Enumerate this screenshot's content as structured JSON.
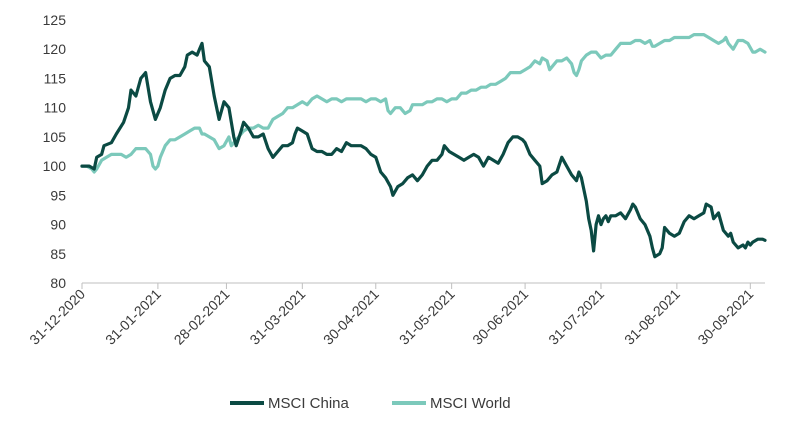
{
  "chart_data": {
    "type": "line",
    "title": "",
    "xlabel": "",
    "ylabel": "",
    "ylim": [
      80,
      125
    ],
    "yticks": [
      80,
      85,
      90,
      95,
      100,
      105,
      110,
      115,
      120,
      125
    ],
    "grid": false,
    "legend_position": "bottom-center",
    "x_tick_labels": [
      "31-12-2020",
      "31-01-2021",
      "28-02-2021",
      "31-03-2021",
      "30-04-2021",
      "31-05-2021",
      "30-06-2021",
      "31-07-2021",
      "31-08-2021",
      "30-09-2021"
    ],
    "x_tick_days": [
      0,
      31,
      59,
      90,
      120,
      151,
      181,
      212,
      243,
      273
    ],
    "series": [
      {
        "name": "MSCI China",
        "color": "#0b4a43",
        "points": [
          [
            0,
            100
          ],
          [
            3,
            100
          ],
          [
            5,
            99.5
          ],
          [
            6,
            101.5
          ],
          [
            8,
            102
          ],
          [
            9,
            103.5
          ],
          [
            12,
            104
          ],
          [
            14,
            105.5
          ],
          [
            17,
            107.5
          ],
          [
            19,
            110
          ],
          [
            20,
            113
          ],
          [
            22,
            112
          ],
          [
            24,
            115
          ],
          [
            26,
            116
          ],
          [
            28,
            111
          ],
          [
            30,
            108
          ],
          [
            32,
            110
          ],
          [
            34,
            113
          ],
          [
            36,
            115
          ],
          [
            38,
            115.5
          ],
          [
            40,
            115.5
          ],
          [
            42,
            117
          ],
          [
            43,
            119
          ],
          [
            45,
            119.5
          ],
          [
            47,
            119
          ],
          [
            48,
            120
          ],
          [
            49,
            121
          ],
          [
            50,
            118
          ],
          [
            52,
            117
          ],
          [
            54,
            112
          ],
          [
            56,
            108
          ],
          [
            58,
            111
          ],
          [
            60,
            110
          ],
          [
            62,
            105
          ],
          [
            63,
            103.5
          ],
          [
            65,
            106
          ],
          [
            66,
            107.5
          ],
          [
            68,
            106.5
          ],
          [
            70,
            105
          ],
          [
            72,
            105
          ],
          [
            74,
            105.5
          ],
          [
            76,
            103
          ],
          [
            78,
            101.5
          ],
          [
            80,
            102.5
          ],
          [
            82,
            103.5
          ],
          [
            84,
            103.5
          ],
          [
            86,
            104
          ],
          [
            87,
            105.5
          ],
          [
            88,
            106.5
          ],
          [
            90,
            106
          ],
          [
            92,
            105.5
          ],
          [
            94,
            103
          ],
          [
            96,
            102.5
          ],
          [
            98,
            102.5
          ],
          [
            100,
            102
          ],
          [
            102,
            102
          ],
          [
            104,
            103
          ],
          [
            106,
            102.5
          ],
          [
            108,
            104
          ],
          [
            110,
            103.5
          ],
          [
            112,
            103.5
          ],
          [
            114,
            103.5
          ],
          [
            116,
            103
          ],
          [
            118,
            102
          ],
          [
            120,
            101.5
          ],
          [
            122,
            99
          ],
          [
            124,
            98
          ],
          [
            126,
            96.5
          ],
          [
            127,
            95
          ],
          [
            129,
            96.5
          ],
          [
            131,
            97
          ],
          [
            133,
            98
          ],
          [
            135,
            98.5
          ],
          [
            137,
            97.5
          ],
          [
            139,
            98.5
          ],
          [
            141,
            100
          ],
          [
            143,
            101
          ],
          [
            145,
            101
          ],
          [
            147,
            102
          ],
          [
            148,
            103.5
          ],
          [
            150,
            102.5
          ],
          [
            152,
            102
          ],
          [
            154,
            101.5
          ],
          [
            156,
            101
          ],
          [
            158,
            101.5
          ],
          [
            160,
            102
          ],
          [
            162,
            101.5
          ],
          [
            164,
            100
          ],
          [
            166,
            101.5
          ],
          [
            168,
            101
          ],
          [
            170,
            100.5
          ],
          [
            172,
            102
          ],
          [
            174,
            104
          ],
          [
            176,
            105
          ],
          [
            178,
            105
          ],
          [
            180,
            104.5
          ],
          [
            181,
            104
          ],
          [
            183,
            102
          ],
          [
            185,
            101
          ],
          [
            187,
            100
          ],
          [
            188,
            97
          ],
          [
            190,
            97.5
          ],
          [
            192,
            98.5
          ],
          [
            194,
            99
          ],
          [
            196,
            101.5
          ],
          [
            198,
            100
          ],
          [
            200,
            98.5
          ],
          [
            202,
            97.5
          ],
          [
            203,
            99
          ],
          [
            204,
            98
          ],
          [
            206,
            94
          ],
          [
            207,
            91
          ],
          [
            208,
            89
          ],
          [
            209,
            85.5
          ],
          [
            210,
            90
          ],
          [
            211,
            91.5
          ],
          [
            212,
            90
          ],
          [
            213,
            91
          ],
          [
            214,
            91.5
          ],
          [
            215,
            90.5
          ],
          [
            216,
            91.5
          ],
          [
            218,
            91.5
          ],
          [
            220,
            92
          ],
          [
            222,
            91
          ],
          [
            224,
            92.5
          ],
          [
            225,
            93.5
          ],
          [
            226,
            93
          ],
          [
            228,
            91
          ],
          [
            230,
            90
          ],
          [
            232,
            88
          ],
          [
            233,
            86
          ],
          [
            234,
            84.5
          ],
          [
            236,
            85
          ],
          [
            237,
            86
          ],
          [
            238,
            89.5
          ],
          [
            239,
            89
          ],
          [
            240,
            88.5
          ],
          [
            242,
            88
          ],
          [
            244,
            88.5
          ],
          [
            246,
            90.5
          ],
          [
            248,
            91.5
          ],
          [
            250,
            91
          ],
          [
            252,
            91.5
          ],
          [
            254,
            92
          ],
          [
            255,
            93.5
          ],
          [
            257,
            93
          ],
          [
            258,
            91
          ],
          [
            260,
            92
          ],
          [
            261,
            90.5
          ],
          [
            262,
            89
          ],
          [
            264,
            88
          ],
          [
            265,
            88.5
          ],
          [
            266,
            87
          ],
          [
            268,
            86
          ],
          [
            270,
            86.5
          ],
          [
            271,
            86
          ],
          [
            272,
            87
          ],
          [
            273,
            86.5
          ],
          [
            274,
            87
          ],
          [
            276,
            87.5
          ],
          [
            278,
            87.5
          ],
          [
            279,
            87.3
          ]
        ]
      },
      {
        "name": "MSCI World",
        "color": "#7cc9bb",
        "points": [
          [
            0,
            100
          ],
          [
            2,
            100
          ],
          [
            4,
            99.5
          ],
          [
            5,
            99
          ],
          [
            6,
            99.5
          ],
          [
            8,
            101
          ],
          [
            10,
            101.5
          ],
          [
            12,
            102
          ],
          [
            14,
            102
          ],
          [
            16,
            102
          ],
          [
            18,
            101.5
          ],
          [
            20,
            102
          ],
          [
            22,
            103
          ],
          [
            24,
            103
          ],
          [
            26,
            103
          ],
          [
            28,
            102
          ],
          [
            29,
            100
          ],
          [
            30,
            99.5
          ],
          [
            31,
            100
          ],
          [
            32,
            101.5
          ],
          [
            34,
            103.5
          ],
          [
            36,
            104.5
          ],
          [
            38,
            104.5
          ],
          [
            40,
            105
          ],
          [
            42,
            105.5
          ],
          [
            44,
            106
          ],
          [
            46,
            106.5
          ],
          [
            48,
            106.5
          ],
          [
            49,
            105.5
          ],
          [
            50,
            105.5
          ],
          [
            52,
            105
          ],
          [
            54,
            104.5
          ],
          [
            56,
            103
          ],
          [
            58,
            103.5
          ],
          [
            60,
            105
          ],
          [
            61,
            103.5
          ],
          [
            62,
            104
          ],
          [
            64,
            105
          ],
          [
            66,
            106
          ],
          [
            68,
            106.5
          ],
          [
            70,
            106.5
          ],
          [
            72,
            107
          ],
          [
            74,
            106.5
          ],
          [
            76,
            106.5
          ],
          [
            78,
            108
          ],
          [
            80,
            108.5
          ],
          [
            82,
            109
          ],
          [
            84,
            110
          ],
          [
            86,
            110
          ],
          [
            88,
            110.5
          ],
          [
            90,
            111
          ],
          [
            92,
            110.5
          ],
          [
            94,
            111.5
          ],
          [
            96,
            112
          ],
          [
            98,
            111.5
          ],
          [
            100,
            111
          ],
          [
            102,
            111.5
          ],
          [
            104,
            111.5
          ],
          [
            106,
            111
          ],
          [
            108,
            111.5
          ],
          [
            110,
            111.5
          ],
          [
            112,
            111.5
          ],
          [
            114,
            111.5
          ],
          [
            116,
            111
          ],
          [
            118,
            111.5
          ],
          [
            120,
            111.5
          ],
          [
            122,
            111
          ],
          [
            124,
            111.5
          ],
          [
            125,
            109.5
          ],
          [
            126,
            109
          ],
          [
            128,
            110
          ],
          [
            130,
            110
          ],
          [
            132,
            109
          ],
          [
            134,
            109.5
          ],
          [
            135,
            110.5
          ],
          [
            137,
            110.5
          ],
          [
            139,
            110.5
          ],
          [
            141,
            111
          ],
          [
            143,
            111
          ],
          [
            145,
            111.5
          ],
          [
            147,
            111.5
          ],
          [
            149,
            111
          ],
          [
            151,
            111.5
          ],
          [
            153,
            111.5
          ],
          [
            155,
            112.5
          ],
          [
            157,
            112.5
          ],
          [
            159,
            113
          ],
          [
            161,
            113
          ],
          [
            163,
            113.5
          ],
          [
            165,
            113.5
          ],
          [
            167,
            114
          ],
          [
            169,
            114
          ],
          [
            171,
            114.5
          ],
          [
            173,
            115
          ],
          [
            175,
            116
          ],
          [
            177,
            116
          ],
          [
            179,
            116
          ],
          [
            181,
            116.5
          ],
          [
            183,
            117
          ],
          [
            185,
            118
          ],
          [
            187,
            117.5
          ],
          [
            188,
            118.5
          ],
          [
            190,
            118
          ],
          [
            191,
            116.5
          ],
          [
            192,
            117
          ],
          [
            194,
            118
          ],
          [
            196,
            118
          ],
          [
            198,
            118.5
          ],
          [
            200,
            117.5
          ],
          [
            201,
            116
          ],
          [
            202,
            115.5
          ],
          [
            203,
            116.5
          ],
          [
            204,
            118
          ],
          [
            206,
            119
          ],
          [
            208,
            119.5
          ],
          [
            210,
            119.5
          ],
          [
            212,
            118.5
          ],
          [
            214,
            119
          ],
          [
            216,
            119
          ],
          [
            218,
            120
          ],
          [
            220,
            121
          ],
          [
            222,
            121
          ],
          [
            224,
            121
          ],
          [
            226,
            121.5
          ],
          [
            228,
            121.5
          ],
          [
            230,
            121
          ],
          [
            232,
            121.5
          ],
          [
            233,
            120.5
          ],
          [
            234,
            120.5
          ],
          [
            236,
            121
          ],
          [
            238,
            121.5
          ],
          [
            240,
            121.5
          ],
          [
            242,
            122
          ],
          [
            244,
            122
          ],
          [
            246,
            122
          ],
          [
            248,
            122
          ],
          [
            250,
            122.5
          ],
          [
            252,
            122.5
          ],
          [
            254,
            122.5
          ],
          [
            256,
            122
          ],
          [
            258,
            121.5
          ],
          [
            260,
            121
          ],
          [
            262,
            121.5
          ],
          [
            263,
            122
          ],
          [
            264,
            121
          ],
          [
            266,
            120
          ],
          [
            268,
            121.5
          ],
          [
            270,
            121.5
          ],
          [
            272,
            121
          ],
          [
            274,
            119.5
          ],
          [
            275,
            119.5
          ],
          [
            277,
            120
          ],
          [
            279,
            119.5
          ]
        ]
      }
    ]
  }
}
